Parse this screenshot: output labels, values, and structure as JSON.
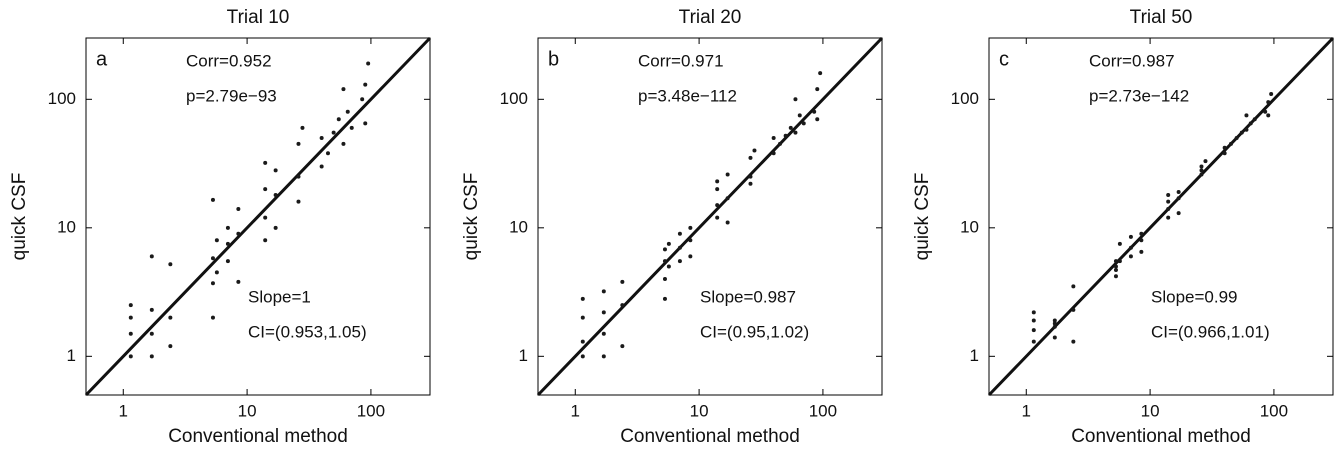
{
  "chart_data": [
    {
      "type": "scatter",
      "title": "Trial 10",
      "panel_label": "a",
      "annotations": [
        "Corr=0.952",
        "p=2.79e−93",
        "Slope=1",
        "CI=(0.953,1.05)"
      ],
      "x_label": "Conventional method",
      "y_label": "quick CSF",
      "xscale": "log",
      "yscale": "log",
      "color": "#1a1a1a",
      "xlim": [
        0.5,
        300
      ],
      "ylim": [
        0.5,
        300
      ],
      "xticks": [
        1,
        10,
        100
      ],
      "yticks": [
        1,
        10,
        100
      ],
      "x": [
        1.15,
        1.15,
        1.15,
        1.15,
        1.7,
        1.7,
        1.7,
        1.7,
        2.4,
        2.4,
        2.4,
        5.3,
        5.3,
        5.3,
        5.3,
        5.7,
        5.7,
        7,
        7,
        7,
        8.5,
        8.5,
        8.5,
        14,
        14,
        14,
        14,
        17,
        17,
        17,
        26,
        26,
        26,
        28,
        40,
        40,
        45,
        50,
        55,
        60,
        60,
        65,
        70,
        85,
        90,
        90,
        95
      ],
      "y": [
        1.0,
        1.5,
        2.0,
        2.5,
        1.0,
        1.5,
        2.3,
        6.0,
        1.2,
        2.0,
        5.2,
        2.0,
        3.7,
        5.8,
        16.5,
        4.5,
        8.0,
        5.5,
        7.5,
        10,
        3.8,
        9,
        14,
        8,
        12,
        20,
        32,
        10,
        18,
        28,
        16,
        25,
        45,
        60,
        30,
        50,
        38,
        55,
        70,
        45,
        120,
        80,
        60,
        100,
        65,
        130,
        190
      ]
    },
    {
      "type": "scatter",
      "title": "Trial 20",
      "panel_label": "b",
      "annotations": [
        "Corr=0.971",
        "p=3.48e−112",
        "Slope=0.987",
        "CI=(0.95,1.02)"
      ],
      "x_label": "Conventional method",
      "y_label": "quick CSF",
      "xscale": "log",
      "yscale": "log",
      "color": "#1a1a1a",
      "xlim": [
        0.5,
        300
      ],
      "ylim": [
        0.5,
        300
      ],
      "xticks": [
        1,
        10,
        100
      ],
      "yticks": [
        1,
        10,
        100
      ],
      "x": [
        1.15,
        1.15,
        1.15,
        1.15,
        1.7,
        1.7,
        1.7,
        1.7,
        2.4,
        2.4,
        2.4,
        5.3,
        5.3,
        5.3,
        5.3,
        5.7,
        5.7,
        7,
        7,
        7,
        8.5,
        8.5,
        8.5,
        14,
        14,
        14,
        14,
        17,
        17,
        17,
        26,
        26,
        26,
        28,
        40,
        40,
        45,
        50,
        55,
        60,
        60,
        65,
        70,
        85,
        90,
        90,
        95
      ],
      "y": [
        1.0,
        1.3,
        2.0,
        2.8,
        1.0,
        1.5,
        2.2,
        3.2,
        1.2,
        2.5,
        3.8,
        2.8,
        4,
        5.5,
        6.8,
        5,
        7.5,
        5.5,
        7,
        9,
        6,
        8,
        10,
        12,
        15,
        20,
        23,
        11,
        17,
        26,
        22,
        25,
        35,
        40,
        38,
        50,
        45,
        52,
        60,
        55,
        100,
        75,
        65,
        80,
        70,
        120,
        160
      ]
    },
    {
      "type": "scatter",
      "title": "Trial 50",
      "panel_label": "c",
      "annotations": [
        "Corr=0.987",
        "p=2.73e−142",
        "Slope=0.99",
        "CI=(0.966,1.01)"
      ],
      "x_label": "Conventional method",
      "y_label": "quick CSF",
      "xscale": "log",
      "yscale": "log",
      "color": "#1a1a1a",
      "xlim": [
        0.5,
        300
      ],
      "ylim": [
        0.5,
        300
      ],
      "xticks": [
        1,
        10,
        100
      ],
      "yticks": [
        1,
        10,
        100
      ],
      "x": [
        1.15,
        1.15,
        1.15,
        1.15,
        1.7,
        1.7,
        1.7,
        1.7,
        2.4,
        2.4,
        2.4,
        5.3,
        5.3,
        5.3,
        5.3,
        5.7,
        5.7,
        7,
        7,
        7,
        8.5,
        8.5,
        8.5,
        14,
        14,
        14,
        14,
        17,
        17,
        17,
        26,
        26,
        26,
        28,
        40,
        40,
        45,
        50,
        55,
        60,
        60,
        65,
        70,
        85,
        90,
        90,
        95
      ],
      "y": [
        1.3,
        1.6,
        1.9,
        2.2,
        1.4,
        1.7,
        1.9,
        1.8,
        1.3,
        2.3,
        3.5,
        4.2,
        5,
        5.5,
        4.7,
        5.5,
        7.5,
        6,
        7,
        8.5,
        6.5,
        8,
        9,
        12,
        14,
        16,
        18,
        13,
        17,
        19,
        26,
        28,
        30,
        33,
        38,
        42,
        45,
        50,
        55,
        58,
        75,
        65,
        70,
        80,
        75,
        95,
        110
      ]
    }
  ]
}
